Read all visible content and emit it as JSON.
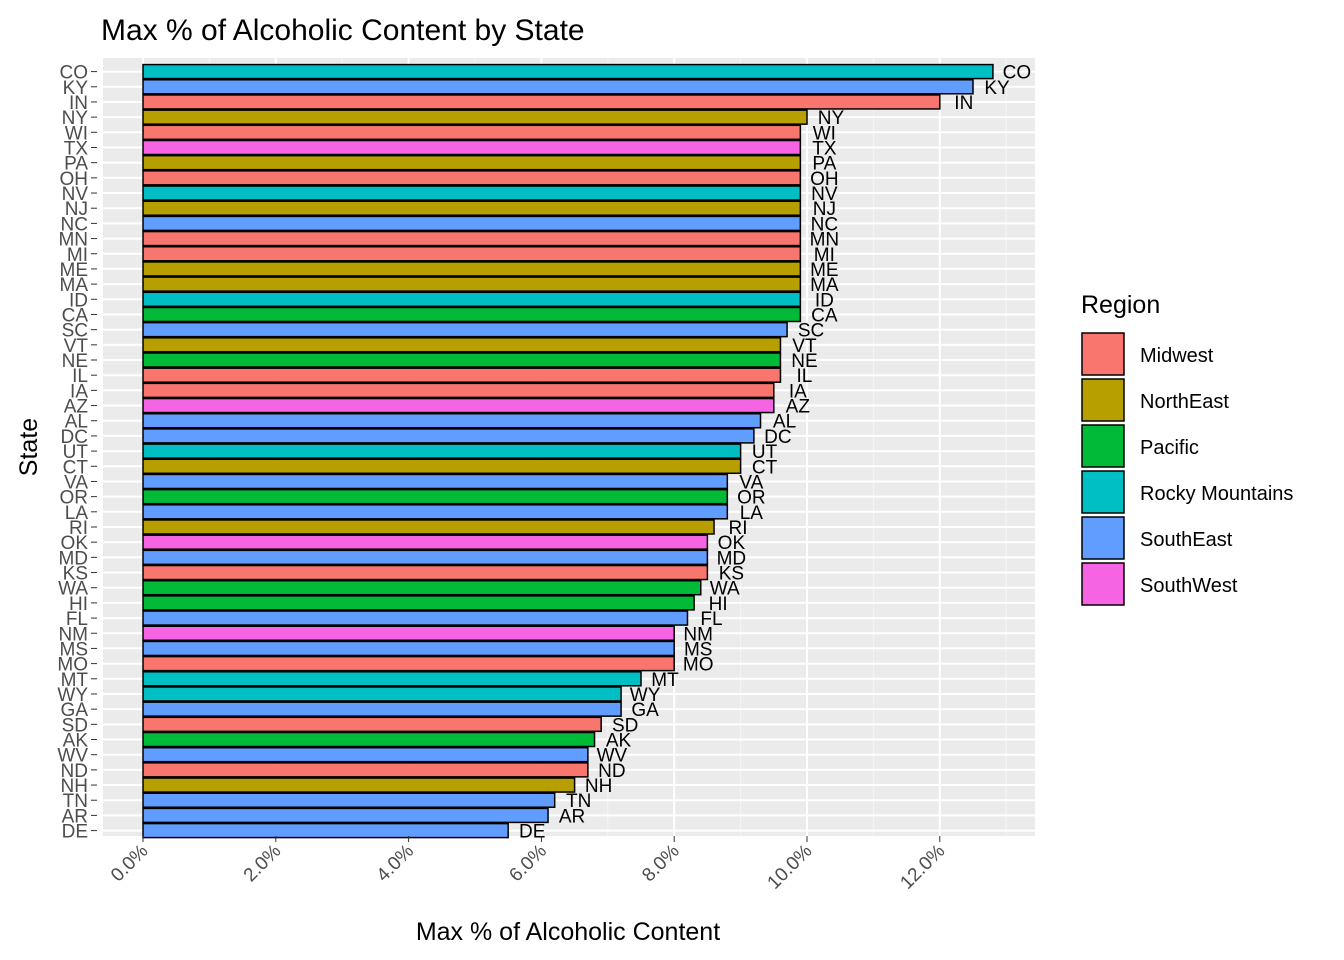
{
  "chart_data": {
    "type": "bar",
    "orientation": "horizontal",
    "title": "Max % of Alcoholic Content by State",
    "xlabel": "Max % of Alcoholic Content",
    "ylabel": "State",
    "xlim": [
      -0.6,
      13.5
    ],
    "x_ticks": [
      0,
      2,
      4,
      6,
      8,
      10,
      12
    ],
    "x_tick_labels": [
      "0.0%",
      "2.0%",
      "4.0%",
      "6.0%",
      "8.0%",
      "10.0%",
      "12.0%"
    ],
    "grid": true,
    "legend": {
      "title": "Region",
      "position": "right"
    },
    "region_colors": {
      "Midwest": "#F8766D",
      "NorthEast": "#B79F00",
      "Pacific": "#00BA38",
      "Rocky Mountains": "#00BFC4",
      "SouthEast": "#619CFF",
      "SouthWest": "#F564E3"
    },
    "bars": [
      {
        "state": "CO",
        "value": 12.8,
        "region": "Rocky Mountains"
      },
      {
        "state": "KY",
        "value": 12.5,
        "region": "SouthEast"
      },
      {
        "state": "IN",
        "value": 12.0,
        "region": "Midwest"
      },
      {
        "state": "NY",
        "value": 10.0,
        "region": "NorthEast"
      },
      {
        "state": "WI",
        "value": 9.9,
        "region": "Midwest"
      },
      {
        "state": "TX",
        "value": 9.9,
        "region": "SouthWest"
      },
      {
        "state": "PA",
        "value": 9.9,
        "region": "NorthEast"
      },
      {
        "state": "OH",
        "value": 9.9,
        "region": "Midwest"
      },
      {
        "state": "NV",
        "value": 9.9,
        "region": "Rocky Mountains"
      },
      {
        "state": "NJ",
        "value": 9.9,
        "region": "NorthEast"
      },
      {
        "state": "NC",
        "value": 9.9,
        "region": "SouthEast"
      },
      {
        "state": "MN",
        "value": 9.9,
        "region": "Midwest"
      },
      {
        "state": "MI",
        "value": 9.9,
        "region": "Midwest"
      },
      {
        "state": "ME",
        "value": 9.9,
        "region": "NorthEast"
      },
      {
        "state": "MA",
        "value": 9.9,
        "region": "NorthEast"
      },
      {
        "state": "ID",
        "value": 9.9,
        "region": "Rocky Mountains"
      },
      {
        "state": "CA",
        "value": 9.9,
        "region": "Pacific"
      },
      {
        "state": "SC",
        "value": 9.7,
        "region": "SouthEast"
      },
      {
        "state": "VT",
        "value": 9.6,
        "region": "NorthEast"
      },
      {
        "state": "NE",
        "value": 9.6,
        "region": "Pacific"
      },
      {
        "state": "IL",
        "value": 9.6,
        "region": "Midwest"
      },
      {
        "state": "IA",
        "value": 9.5,
        "region": "Midwest"
      },
      {
        "state": "AZ",
        "value": 9.5,
        "region": "SouthWest"
      },
      {
        "state": "AL",
        "value": 9.3,
        "region": "SouthEast"
      },
      {
        "state": "DC",
        "value": 9.2,
        "region": "SouthEast"
      },
      {
        "state": "UT",
        "value": 9.0,
        "region": "Rocky Mountains"
      },
      {
        "state": "CT",
        "value": 9.0,
        "region": "NorthEast"
      },
      {
        "state": "VA",
        "value": 8.8,
        "region": "SouthEast"
      },
      {
        "state": "OR",
        "value": 8.8,
        "region": "Pacific"
      },
      {
        "state": "LA",
        "value": 8.8,
        "region": "SouthEast"
      },
      {
        "state": "RI",
        "value": 8.6,
        "region": "NorthEast"
      },
      {
        "state": "OK",
        "value": 8.5,
        "region": "SouthWest"
      },
      {
        "state": "MD",
        "value": 8.5,
        "region": "SouthEast"
      },
      {
        "state": "KS",
        "value": 8.5,
        "region": "Midwest"
      },
      {
        "state": "WA",
        "value": 8.4,
        "region": "Pacific"
      },
      {
        "state": "HI",
        "value": 8.3,
        "region": "Pacific"
      },
      {
        "state": "FL",
        "value": 8.2,
        "region": "SouthEast"
      },
      {
        "state": "NM",
        "value": 8.0,
        "region": "SouthWest"
      },
      {
        "state": "MS",
        "value": 8.0,
        "region": "SouthEast"
      },
      {
        "state": "MO",
        "value": 8.0,
        "region": "Midwest"
      },
      {
        "state": "MT",
        "value": 7.5,
        "region": "Rocky Mountains"
      },
      {
        "state": "WY",
        "value": 7.2,
        "region": "Rocky Mountains"
      },
      {
        "state": "GA",
        "value": 7.2,
        "region": "SouthEast"
      },
      {
        "state": "SD",
        "value": 6.9,
        "region": "Midwest"
      },
      {
        "state": "AK",
        "value": 6.8,
        "region": "Pacific"
      },
      {
        "state": "WV",
        "value": 6.7,
        "region": "SouthEast"
      },
      {
        "state": "ND",
        "value": 6.7,
        "region": "Midwest"
      },
      {
        "state": "NH",
        "value": 6.5,
        "region": "NorthEast"
      },
      {
        "state": "TN",
        "value": 6.2,
        "region": "SouthEast"
      },
      {
        "state": "AR",
        "value": 6.1,
        "region": "SouthEast"
      },
      {
        "state": "DE",
        "value": 5.5,
        "region": "SouthEast"
      }
    ]
  }
}
